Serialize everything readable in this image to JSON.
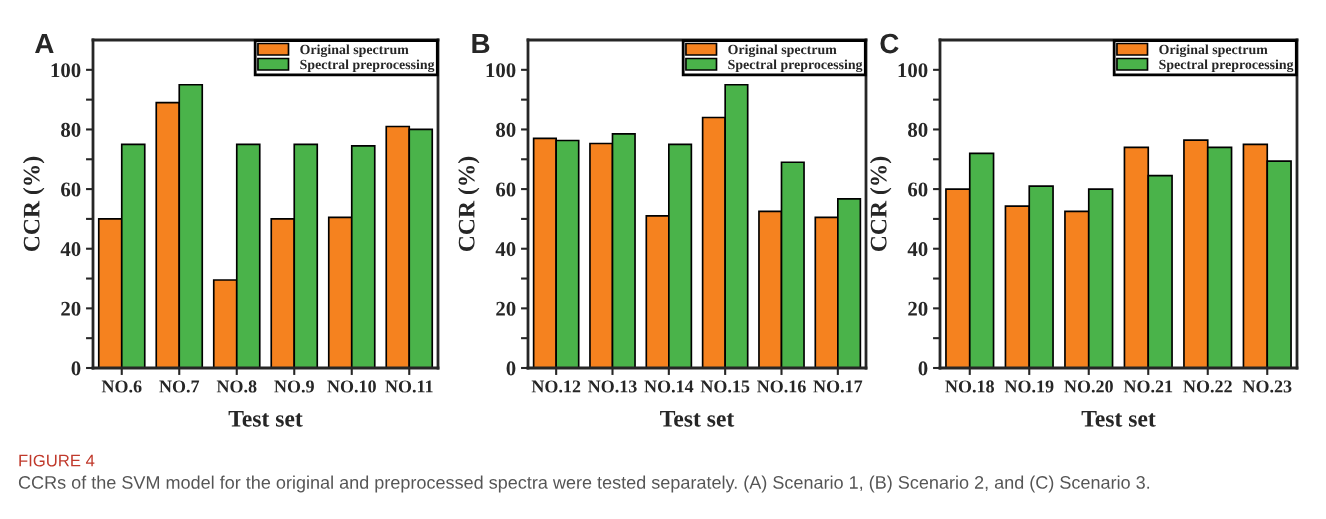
{
  "chart_data": [
    {
      "type": "bar",
      "title": "A",
      "xlabel": "Test set",
      "ylabel": "CCR (%)",
      "categories": [
        "NO.6",
        "NO.7",
        "NO.8",
        "NO.9",
        "NO.10",
        "NO.11"
      ],
      "series": [
        {
          "name": "Original spectrum",
          "color": "#f5821f",
          "values": [
            50,
            89,
            29.5,
            50,
            50.5,
            81
          ]
        },
        {
          "name": "Spectral preprocessing",
          "color": "#4ab34a",
          "values": [
            75,
            95,
            75,
            75,
            74.5,
            80
          ]
        }
      ],
      "ylim": [
        0,
        110
      ],
      "yticks": [
        0,
        {
          "value": 10,
          "label": null
        },
        20,
        {
          "value": 30,
          "label": null
        },
        40,
        {
          "value": 50,
          "label": null
        },
        60,
        {
          "value": 70,
          "label": null
        },
        80,
        {
          "value": 90,
          "label": null
        },
        100
      ],
      "legend": "top right",
      "grid": false,
      "annotations": [
        "FIGURE 4",
        "CCRs of the SVM model for the original and preprocessed spectra were tested separately. (A) Scenario 1, (B) Scenario 2, and (C) Scenario 3."
      ]
    },
    {
      "type": "bar",
      "title": "B",
      "xlabel": "Test set",
      "ylabel": "CCR (%)",
      "categories": [
        "NO.12",
        "NO.13",
        "NO.14",
        "NO.15",
        "NO.16",
        "NO.17"
      ],
      "series": [
        {
          "name": "Original spectrum",
          "color": "#f5821f",
          "values": [
            77,
            75.3,
            51,
            84,
            52.5,
            50.5
          ]
        },
        {
          "name": "Spectral preprocessing",
          "color": "#4ab34a",
          "values": [
            76.3,
            78.5,
            75,
            95,
            69,
            56.7
          ]
        }
      ],
      "ylim": [
        0,
        110
      ],
      "yticks": [
        0,
        {
          "value": 10,
          "label": null
        },
        20,
        {
          "value": 30,
          "label": null
        },
        40,
        {
          "value": 50,
          "label": null
        },
        60,
        {
          "value": 70,
          "label": null
        },
        80,
        {
          "value": 90,
          "label": null
        },
        100
      ],
      "legend": "top right",
      "grid": false
    },
    {
      "type": "bar",
      "title": "C",
      "xlabel": "Test set",
      "ylabel": "CCR (%)",
      "categories": [
        "NO.18",
        "NO.19",
        "NO.20",
        "NO.21",
        "NO.22",
        "NO.23"
      ],
      "series": [
        {
          "name": "Original spectrum",
          "color": "#f5821f",
          "values": [
            60,
            54.3,
            52.5,
            74,
            76.4,
            75
          ]
        },
        {
          "name": "Spectral preprocessing",
          "color": "#4ab34a",
          "values": [
            72,
            61,
            60,
            64.5,
            74,
            69.4
          ]
        }
      ],
      "ylim": [
        0,
        110
      ],
      "yticks": [
        0,
        {
          "value": 10,
          "label": null
        },
        20,
        {
          "value": 30,
          "label": null
        },
        40,
        {
          "value": 50,
          "label": null
        },
        60,
        {
          "value": 70,
          "label": null
        },
        80,
        {
          "value": 90,
          "label": null
        },
        100
      ],
      "legend": "top right",
      "grid": false
    }
  ]
}
